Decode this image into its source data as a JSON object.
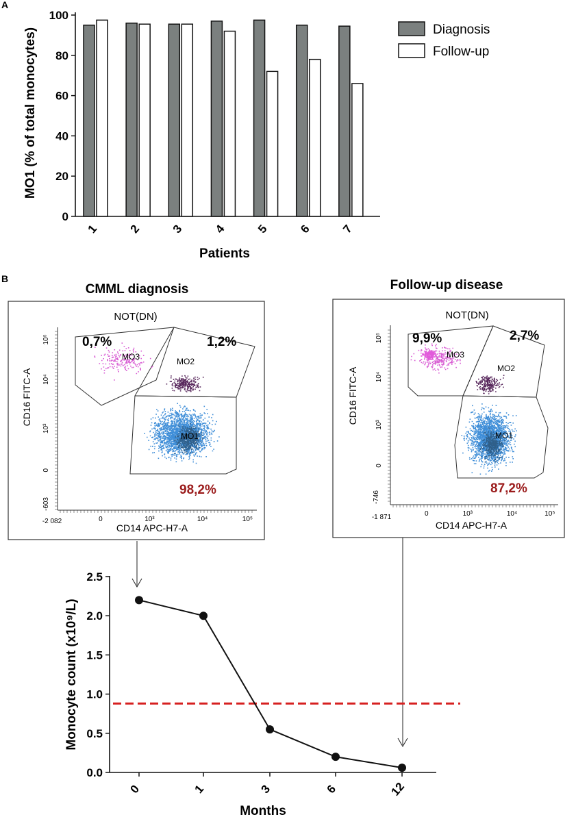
{
  "panel_labels": {
    "a": "A",
    "b": "B"
  },
  "colors": {
    "diagnosis_bar": "#7b807f",
    "followup_bar": "#ffffff",
    "bar_stroke": "#111111",
    "magenta_dots": "#d85bd3",
    "purple_dots": "#5a2a5e",
    "blue_dots": "#3f8ed8",
    "pct_red": "#9b1c1c",
    "threshold": "#d62020"
  },
  "chart_data": [
    {
      "type": "bar",
      "title": "",
      "xlabel": "Patients",
      "ylabel": "MO1 (% of total monocytes)",
      "categories": [
        "1",
        "2",
        "3",
        "4",
        "5",
        "6",
        "7"
      ],
      "series": [
        {
          "name": "Diagnosis",
          "values": [
            95,
            96,
            95.5,
            97,
            97.5,
            95,
            94.5
          ]
        },
        {
          "name": "Follow-up",
          "values": [
            97.5,
            95.5,
            95.5,
            92,
            72,
            78,
            66
          ]
        }
      ],
      "ylim": [
        0,
        100
      ],
      "yticks": [
        0,
        20,
        40,
        60,
        80,
        100
      ],
      "legend_position": "top-right"
    },
    {
      "type": "line",
      "title": "",
      "xlabel": "Months",
      "ylabel": "Monocyte count (x10⁹/L)",
      "categories": [
        "0",
        "1",
        "3",
        "6",
        "12"
      ],
      "values": [
        2.2,
        2.0,
        0.55,
        0.2,
        0.06
      ],
      "ylim": [
        0,
        2.5
      ],
      "yticks": [
        "0.0",
        "0.5",
        "1.0",
        "1.5",
        "2.0",
        "2.5"
      ],
      "threshold": 0.88
    }
  ],
  "flow_plots": [
    {
      "heading": "CMML diagnosis",
      "gate_title": "NOT(DN)",
      "ylabel": "CD16 FITC-A",
      "xlabel": "CD14 APC-H7-A",
      "pct_mo3": "0,7%",
      "pct_mo2": "1,2%",
      "pct_mo1": "98,2%",
      "gate_mo1": "MO1",
      "gate_mo2": "MO2",
      "gate_mo3": "MO3",
      "yaxis_min": "-603",
      "xaxis_min": "-2 082",
      "ytick_labels": [
        "10⁵",
        "10⁴",
        "10³",
        "0"
      ],
      "xtick_labels": [
        "0",
        "10³",
        "10⁴",
        "10⁵"
      ]
    },
    {
      "heading": "Follow-up disease",
      "gate_title": "NOT(DN)",
      "ylabel": "CD16 FITC-A",
      "xlabel": "CD14 APC-H7-A",
      "pct_mo3": "9,9%",
      "pct_mo2": "2,7%",
      "pct_mo1": "87,2%",
      "gate_mo1": "MO1",
      "gate_mo2": "MO2",
      "gate_mo3": "MO3",
      "yaxis_min": "-746",
      "xaxis_min": "-1 871",
      "ytick_labels": [
        "10⁵",
        "10⁴",
        "10³",
        "0"
      ],
      "xtick_labels": [
        "0",
        "10³",
        "10⁴",
        "10⁵"
      ]
    }
  ]
}
